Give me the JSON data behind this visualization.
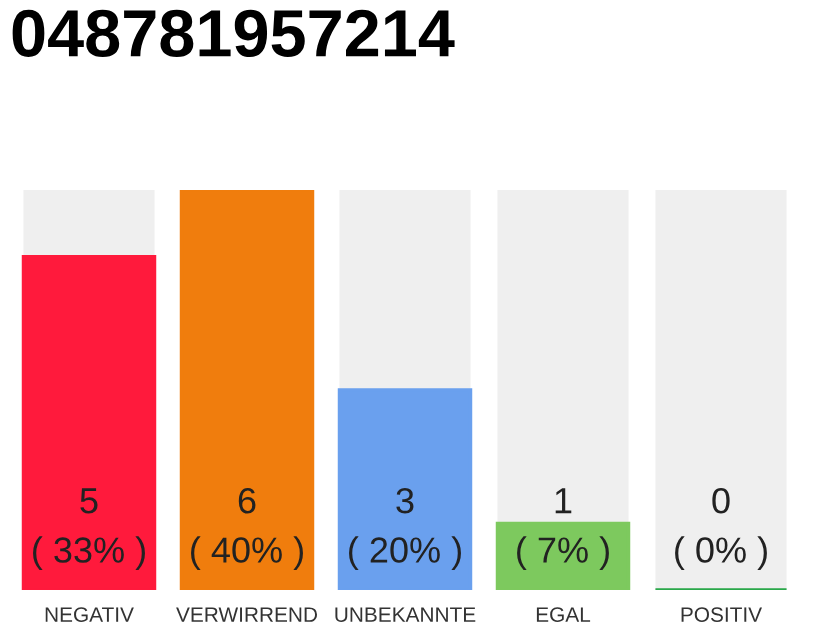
{
  "chart_data": {
    "type": "bar",
    "title": "048781957214",
    "categories": [
      "NEGATIV",
      "VERWIRREND",
      "UNBEKANNTE",
      "EGAL",
      "POSITIV"
    ],
    "values": [
      5,
      6,
      3,
      1,
      0
    ],
    "colors": [
      "#ff1a3c",
      "#f07d0d",
      "#6aa0ee",
      "#7dc95e",
      "#2aa84a"
    ],
    "value_labels": [
      "5\n( 33% )",
      "6\n( 40% )",
      "3\n( 20% )",
      "1\n( 7% )",
      "0\n( 0% )"
    ],
    "grid": false,
    "legend": false
  }
}
